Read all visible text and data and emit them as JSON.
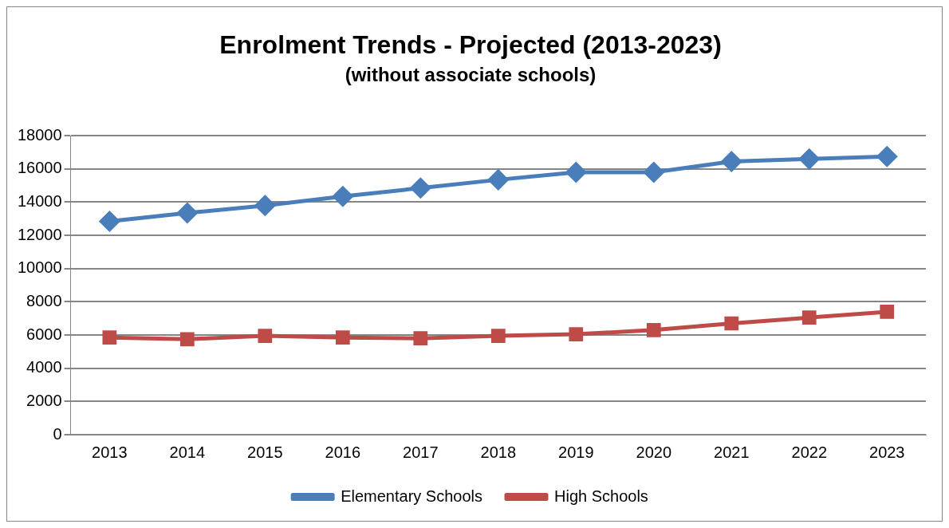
{
  "chart_data": {
    "type": "line",
    "title": "Enrolment Trends - Projected (2013-2023)",
    "subtitle": "(without associate schools)",
    "categories": [
      "2013",
      "2014",
      "2015",
      "2016",
      "2017",
      "2018",
      "2019",
      "2020",
      "2021",
      "2022",
      "2023"
    ],
    "series": [
      {
        "name": "Elementary Schools",
        "color": "#4a7ebb",
        "marker": "diamond",
        "values": [
          12850,
          13350,
          13800,
          14350,
          14850,
          15350,
          15800,
          15800,
          16450,
          16600,
          16750
        ]
      },
      {
        "name": "High Schools",
        "color": "#be4b48",
        "marker": "square",
        "values": [
          5850,
          5750,
          5950,
          5850,
          5800,
          5950,
          6050,
          6300,
          6700,
          7050,
          7400
        ]
      }
    ],
    "ylim": [
      0,
      18000
    ],
    "yticks": [
      0,
      2000,
      4000,
      6000,
      8000,
      10000,
      12000,
      14000,
      16000,
      18000
    ],
    "grid": "y",
    "legend": "bottom"
  }
}
